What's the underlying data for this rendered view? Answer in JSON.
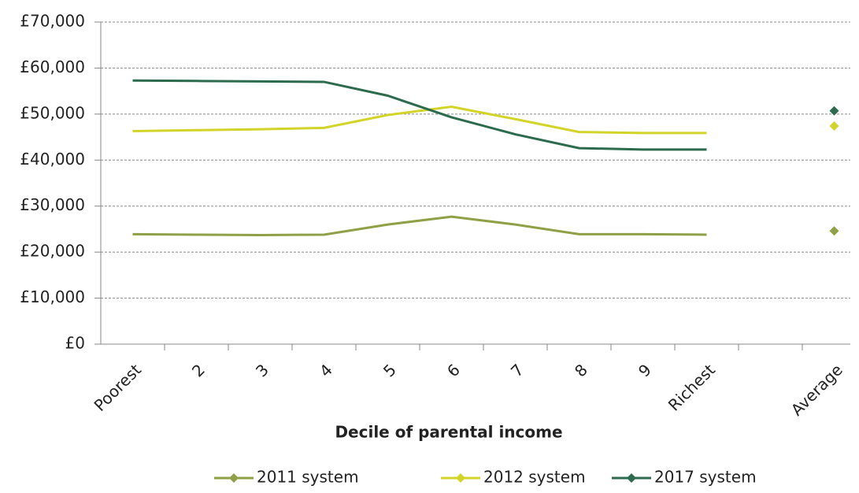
{
  "chart_data": {
    "type": "line",
    "categories": [
      "Poorest",
      "2",
      "3",
      "4",
      "5",
      "6",
      "7",
      "8",
      "9",
      "Richest",
      null,
      "Average"
    ],
    "series": [
      {
        "name": "2011 system",
        "color": "#8fa046",
        "values": [
          23900,
          23800,
          23700,
          23800,
          26000,
          27700,
          26000,
          23900,
          23900,
          23800,
          null,
          24600
        ]
      },
      {
        "name": "2012 system",
        "color": "#d3d42a",
        "values": [
          46300,
          46500,
          46700,
          47000,
          49800,
          51600,
          48900,
          46100,
          45900,
          45900,
          null,
          47400
        ]
      },
      {
        "name": "2017 system",
        "color": "#2d6b4e",
        "values": [
          57300,
          57200,
          57100,
          57000,
          54000,
          49300,
          45600,
          42600,
          42300,
          42300,
          null,
          50700
        ]
      }
    ],
    "xlabel": "Decile of parental income",
    "ylim": [
      0,
      70000
    ],
    "yticks": [
      {
        "value": 0,
        "label": "£0"
      },
      {
        "value": 10000,
        "label": "£10,000"
      },
      {
        "value": 20000,
        "label": "£20,000"
      },
      {
        "value": 30000,
        "label": "£30,000"
      },
      {
        "value": 40000,
        "label": "£40,000"
      },
      {
        "value": 50000,
        "label": "£50,000"
      },
      {
        "value": 60000,
        "label": "£60,000"
      },
      {
        "value": 70000,
        "label": "£70,000"
      }
    ],
    "grid": true
  }
}
